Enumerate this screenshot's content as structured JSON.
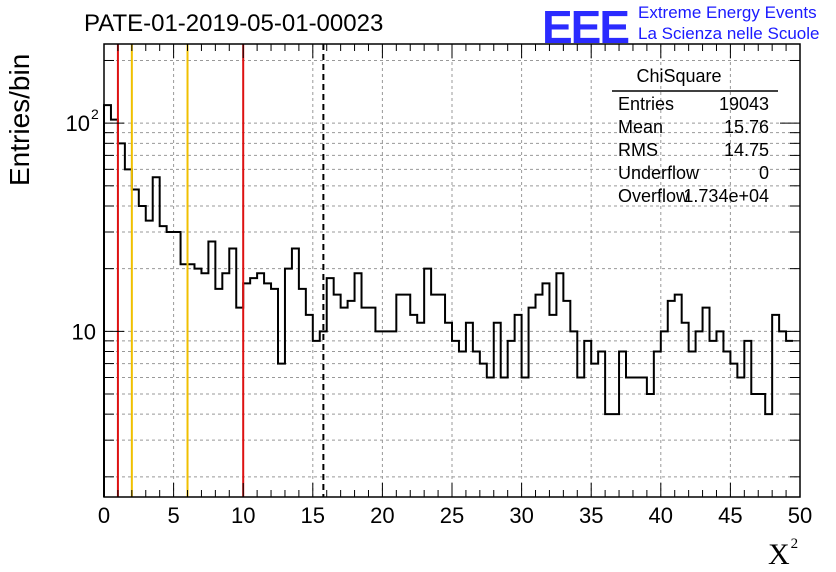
{
  "title": "PATE-01-2019-05-01-00023",
  "logo": {
    "mark": "EEE",
    "line1": "Extreme Energy Events",
    "line2": "La Scienza nelle Scuole",
    "color": "#2b2bff"
  },
  "stats": {
    "name": "ChiSquare",
    "rows": [
      {
        "label": "Entries",
        "value": "19043"
      },
      {
        "label": "Mean",
        "value": "15.76"
      },
      {
        "label": "RMS",
        "value": "14.75"
      },
      {
        "label": "Underflow",
        "value": "0"
      },
      {
        "label": "Overflow",
        "value": "1.734e+04"
      }
    ]
  },
  "chart_data": {
    "type": "histogram",
    "title": "PATE-01-2019-05-01-00023",
    "xlabel": "X",
    "xlabel_superscript": "2",
    "ylabel": "Entries/bin",
    "xlim": [
      0,
      50
    ],
    "ylim": [
      1.6,
      240
    ],
    "yscale": "log",
    "grid": true,
    "x_ticks": [
      "0",
      "5",
      "10",
      "15",
      "20",
      "25",
      "30",
      "35",
      "40",
      "45",
      "50"
    ],
    "x_tick_values": [
      0,
      5,
      10,
      15,
      20,
      25,
      30,
      35,
      40,
      45,
      50
    ],
    "y_ticks": [
      {
        "base": "10",
        "exp": "",
        "value": 10
      },
      {
        "base": "10",
        "exp": "2",
        "value": 100
      }
    ],
    "bin_width": 0.5,
    "values": [
      122,
      104,
      80,
      60,
      48,
      40,
      34,
      55,
      32,
      30,
      30,
      21,
      21,
      20,
      19,
      27,
      16,
      19,
      25,
      13,
      17,
      18,
      19,
      17,
      16,
      7,
      20,
      25,
      16,
      12,
      9,
      10,
      18,
      15,
      13,
      14,
      19,
      13,
      13,
      10,
      10,
      10,
      15,
      15,
      12,
      11,
      20,
      15,
      15,
      11,
      9,
      8,
      11,
      8,
      7,
      6,
      11,
      6,
      9,
      12,
      6,
      13,
      15,
      17,
      12,
      19,
      14,
      10,
      6,
      9,
      7,
      8,
      4,
      4,
      8,
      6,
      6,
      6,
      5,
      8,
      10,
      14,
      15,
      11,
      8,
      10,
      13,
      9,
      10,
      8,
      7,
      6,
      9,
      5,
      5,
      4,
      12,
      10,
      9
    ],
    "vertical_lines": [
      {
        "x": 1,
        "color": "#dd1111",
        "style": "solid"
      },
      {
        "x": 2,
        "color": "#f0c000",
        "style": "solid"
      },
      {
        "x": 6,
        "color": "#f0c000",
        "style": "solid"
      },
      {
        "x": 10,
        "color": "#dd1111",
        "style": "solid"
      },
      {
        "x": 15.76,
        "color": "#000000",
        "style": "dashed"
      }
    ]
  }
}
